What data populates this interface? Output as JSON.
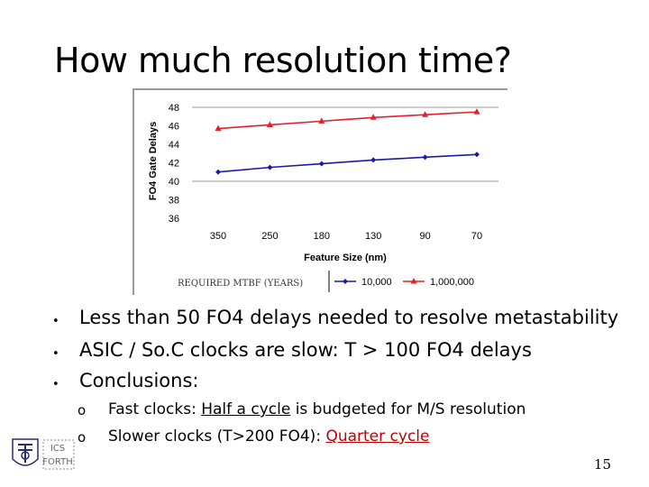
{
  "slide": {
    "title": "How much resolution time?",
    "page_number": "15"
  },
  "bullets": [
    "Less than 50 FO4 delays needed to resolve metastability",
    "ASIC / So.C clocks are slow: T > 100 FO4 delays",
    "Conclusions:"
  ],
  "sub_bullets": [
    {
      "before": "Fast clocks: ",
      "highlight": "Half a cycle",
      "after": " is budgeted for M/S resolution"
    },
    {
      "before": "Slower clocks (T>200 FO4): ",
      "highlight": "Quarter cycle",
      "after": ""
    }
  ],
  "logo": {
    "text_top": "ICS",
    "text_bottom": "FORTH"
  },
  "chart_data": {
    "type": "line",
    "categories": [
      "350",
      "250",
      "180",
      "130",
      "90",
      "70"
    ],
    "ylabel": "FO4 Gate Delays",
    "xlabel": "Feature Size (nm)",
    "ylim": [
      36,
      48
    ],
    "yticks": [
      36,
      38,
      40,
      42,
      44,
      46,
      48
    ],
    "grid": "horizontal at top",
    "legend_title": "REQUIRED MTBF (YEARS)",
    "legend_position": "bottom",
    "series": [
      {
        "name": "10,000",
        "color": "#1a1aa6",
        "marker": "diamond",
        "values": [
          41.0,
          41.5,
          41.9,
          42.3,
          42.6,
          42.9
        ]
      },
      {
        "name": "1,000,000",
        "color": "#e0202a",
        "marker": "triangle",
        "values": [
          45.7,
          46.1,
          46.5,
          46.9,
          47.2,
          47.5
        ]
      }
    ]
  }
}
